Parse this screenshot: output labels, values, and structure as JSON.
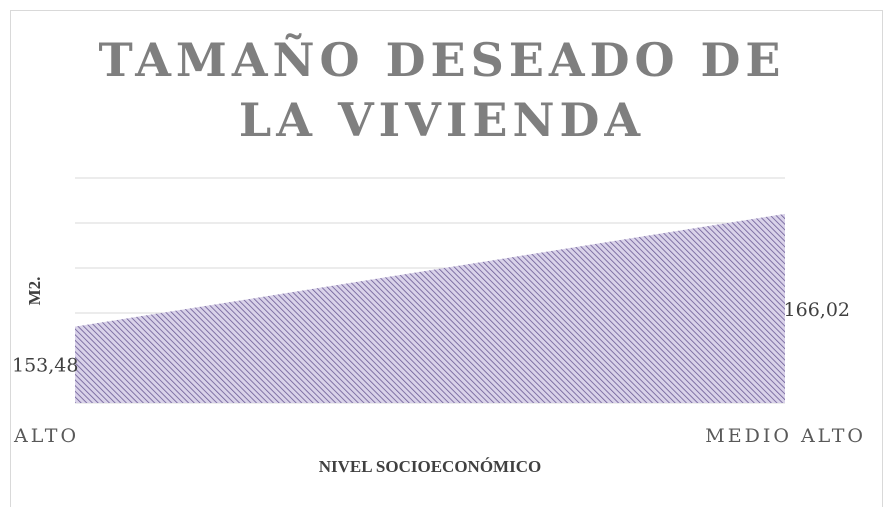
{
  "chart_data": {
    "type": "area",
    "title": "TAMAÑO DESEADO DE LA VIVIENDA",
    "categories": [
      "ALTO",
      "MEDIO ALTO"
    ],
    "values": [
      153.48,
      166.02
    ],
    "value_labels": [
      "153,48",
      "166,02"
    ],
    "color": "#8e7cc3",
    "xlabel": "NIVEL SOCIOECONÓMICO",
    "ylabel": "M2.",
    "ylim": [
      145,
      170
    ],
    "yticks": [
      145,
      150,
      155,
      160,
      165,
      170
    ],
    "grid": true
  }
}
